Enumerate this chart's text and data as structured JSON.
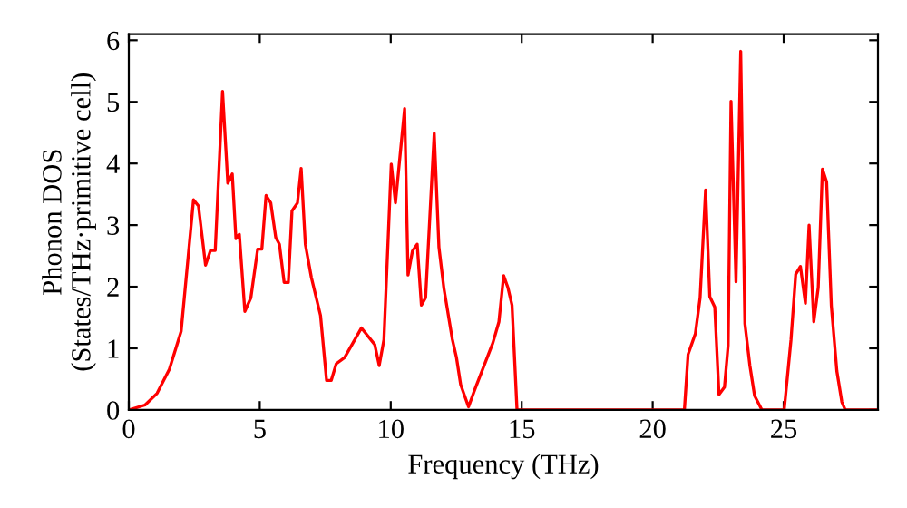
{
  "chart_data": {
    "type": "line",
    "xlabel": "Frequency (THz)",
    "ylabel": "Phonon DOS\n(States/THz·primitive cell)",
    "x": [
      0,
      0.62,
      1.08,
      1.55,
      2.0,
      2.47,
      2.66,
      2.93,
      3.12,
      3.3,
      3.58,
      3.78,
      3.95,
      4.09,
      4.22,
      4.43,
      4.66,
      4.92,
      5.08,
      5.24,
      5.42,
      5.61,
      5.75,
      5.93,
      6.09,
      6.23,
      6.44,
      6.58,
      6.74,
      6.97,
      7.32,
      7.55,
      7.73,
      7.92,
      8.24,
      8.88,
      9.39,
      9.56,
      9.74,
      10.02,
      10.18,
      10.53,
      10.66,
      10.83,
      11.01,
      11.17,
      11.33,
      11.66,
      11.84,
      12.03,
      12.35,
      12.51,
      12.67,
      12.97,
      13.2,
      13.9,
      14.13,
      14.31,
      14.47,
      14.63,
      14.82,
      21.21,
      21.35,
      21.63,
      21.81,
      22.02,
      22.18,
      22.37,
      22.53,
      22.74,
      22.88,
      22.99,
      23.18,
      23.36,
      23.52,
      23.71,
      23.89,
      24.17,
      25.02,
      25.28,
      25.46,
      25.64,
      25.83,
      25.97,
      26.15,
      26.32,
      26.48,
      26.64,
      26.82,
      27.03,
      27.22,
      27.35,
      28.6
    ],
    "series": [
      {
        "color": "#ff0000",
        "values": [
          0,
          0.08,
          0.27,
          0.66,
          1.28,
          3.41,
          3.31,
          2.35,
          2.59,
          2.59,
          5.17,
          3.68,
          3.83,
          2.78,
          2.85,
          1.6,
          1.82,
          2.61,
          2.61,
          3.48,
          3.36,
          2.8,
          2.69,
          2.07,
          2.07,
          3.23,
          3.36,
          3.92,
          2.69,
          2.15,
          1.53,
          0.48,
          0.48,
          0.75,
          0.85,
          1.33,
          1.06,
          0.72,
          1.14,
          3.99,
          3.36,
          4.89,
          2.19,
          2.58,
          2.69,
          1.7,
          1.82,
          4.49,
          2.64,
          1.97,
          1.15,
          0.85,
          0.41,
          0.05,
          0.32,
          1.09,
          1.43,
          2.18,
          1.99,
          1.7,
          0,
          0,
          0.9,
          1.24,
          1.82,
          3.57,
          1.84,
          1.67,
          0.25,
          0.37,
          1.05,
          5.01,
          2.08,
          5.82,
          1.4,
          0.72,
          0.23,
          0,
          0,
          1.14,
          2.2,
          2.33,
          1.73,
          3.0,
          1.43,
          1.99,
          3.91,
          3.7,
          1.69,
          0.63,
          0.13,
          0,
          0
        ]
      }
    ],
    "xlim": [
      0,
      28.6
    ],
    "ylim": [
      0,
      6.1
    ],
    "xticks": [
      0,
      5,
      10,
      15,
      20,
      25
    ],
    "yticks": [
      0,
      1,
      2,
      3,
      4,
      5,
      6
    ],
    "grid": false,
    "legend": false,
    "line_style": "solid",
    "marker": "none"
  }
}
